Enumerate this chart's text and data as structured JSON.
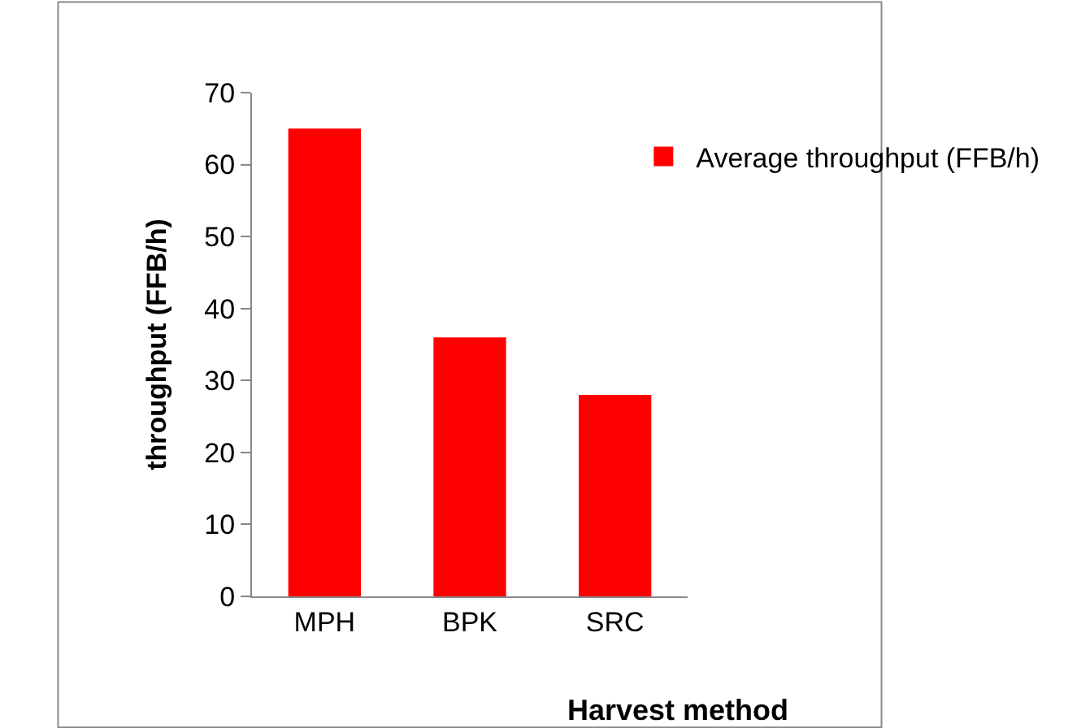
{
  "chart_data": {
    "type": "bar",
    "categories": [
      "MPH",
      "BPK",
      "SRC"
    ],
    "series": [
      {
        "name": "Average throughput (FFB/h)",
        "color": "#ff0000",
        "values": [
          65,
          36,
          28
        ]
      }
    ],
    "xlabel": "Harvest method",
    "ylabel": "throughput (FFB/h)",
    "ylim": [
      0,
      70
    ],
    "yticks": [
      0,
      10,
      20,
      30,
      40,
      50,
      60,
      70
    ],
    "grid": false,
    "legend": "top right"
  }
}
